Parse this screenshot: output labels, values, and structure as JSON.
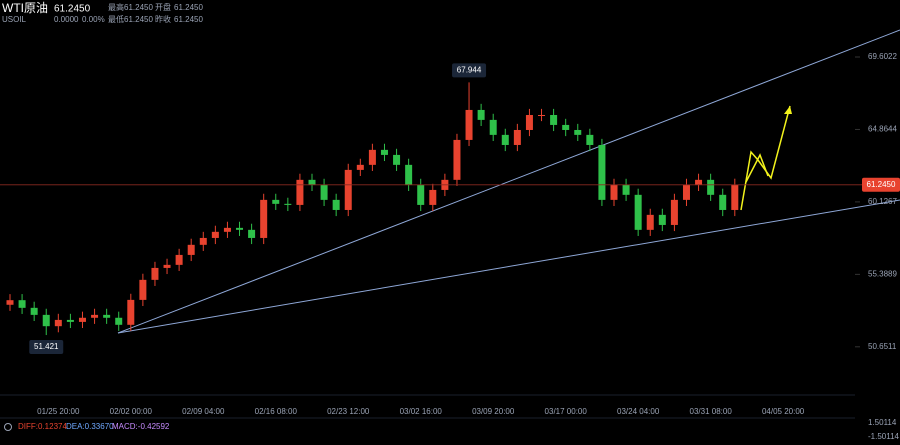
{
  "header": {
    "symbol": "WTI原油",
    "price": "61.2450",
    "code": "USOIL",
    "change": "0.0000",
    "change_pct": "0.00%",
    "high_label": "最高",
    "high": "61.2450",
    "open_label": "开盘",
    "open": "61.2450",
    "low_label": "最低",
    "low": "61.2450",
    "prev_label": "昨收",
    "prev": "61.2450"
  },
  "chart_data": {
    "type": "candlestick",
    "categories": [
      null,
      null,
      null,
      null,
      "01/25 20:00",
      null,
      null,
      null,
      null,
      null,
      "02/02 00:00",
      null,
      null,
      null,
      null,
      null,
      "02/09 04:00",
      null,
      null,
      null,
      null,
      null,
      "02/16 08:00",
      null,
      null,
      null,
      null,
      null,
      "02/23 12:00",
      null,
      null,
      null,
      null,
      null,
      "03/02 16:00",
      null,
      null,
      null,
      null,
      null,
      "03/09 20:00",
      null,
      null,
      null,
      null,
      null,
      "03/17 00:00",
      null,
      null,
      null,
      null,
      null,
      "03/24 04:00",
      null,
      null,
      null,
      null,
      null,
      "03/31 08:00",
      null,
      null,
      null,
      null,
      null,
      "04/05 20:00"
    ],
    "open": [
      53.4,
      53.7,
      53.2,
      52.74,
      52.0,
      52.41,
      52.28,
      52.55,
      52.74,
      52.55,
      52.09,
      53.72,
      55.03,
      55.81,
      56.01,
      56.66,
      57.32,
      57.77,
      58.17,
      58.43,
      58.3,
      57.77,
      60.26,
      60.0,
      59.93,
      61.57,
      61.24,
      60.26,
      59.6,
      62.22,
      62.55,
      63.53,
      63.2,
      62.55,
      61.24,
      59.93,
      60.91,
      61.57,
      64.18,
      66.14,
      65.49,
      64.51,
      63.85,
      64.83,
      65.81,
      65.81,
      65.16,
      64.83,
      64.51,
      63.85,
      60.26,
      61.24,
      60.59,
      58.3,
      59.28,
      58.62,
      60.26,
      61.24,
      61.57,
      60.59,
      59.6,
      null,
      null,
      null,
      null
    ],
    "high": [
      54.1,
      54.1,
      53.6,
      53.14,
      52.81,
      52.81,
      52.95,
      53.14,
      53.14,
      52.95,
      54.12,
      55.43,
      56.21,
      56.41,
      57.06,
      57.72,
      58.17,
      58.57,
      58.83,
      58.83,
      58.7,
      60.66,
      60.66,
      60.4,
      61.97,
      61.97,
      61.64,
      60.66,
      62.62,
      62.95,
      63.93,
      63.93,
      63.6,
      62.95,
      61.64,
      61.31,
      61.97,
      64.58,
      67.944,
      66.54,
      65.89,
      64.91,
      65.23,
      66.21,
      66.21,
      66.21,
      65.56,
      65.23,
      64.91,
      64.25,
      61.64,
      61.64,
      60.99,
      59.68,
      59.68,
      60.66,
      61.64,
      61.97,
      61.97,
      60.99,
      61.645,
      null,
      null,
      null,
      null
    ],
    "low": [
      53.0,
      52.8,
      52.34,
      51.421,
      51.6,
      51.88,
      51.88,
      52.15,
      52.15,
      51.69,
      51.69,
      53.32,
      54.63,
      55.41,
      55.61,
      56.26,
      56.92,
      57.37,
      57.77,
      57.9,
      57.37,
      57.37,
      59.6,
      59.53,
      59.53,
      60.84,
      59.86,
      59.2,
      59.2,
      61.82,
      62.15,
      62.8,
      62.15,
      60.84,
      59.53,
      59.53,
      60.51,
      61.17,
      63.78,
      65.09,
      64.11,
      63.45,
      63.45,
      64.43,
      65.41,
      64.76,
      64.43,
      64.11,
      63.45,
      59.86,
      59.86,
      60.19,
      57.9,
      57.9,
      58.22,
      58.22,
      59.86,
      60.84,
      60.19,
      59.2,
      59.2,
      null,
      null,
      null,
      null
    ],
    "close": [
      53.7,
      53.2,
      52.74,
      52.0,
      52.41,
      52.28,
      52.55,
      52.74,
      52.55,
      52.09,
      53.72,
      55.03,
      55.81,
      56.01,
      56.66,
      57.32,
      57.77,
      58.17,
      58.43,
      58.3,
      57.77,
      60.26,
      60.0,
      59.93,
      61.57,
      61.24,
      60.26,
      59.6,
      62.22,
      62.55,
      63.53,
      63.2,
      62.55,
      61.24,
      59.93,
      60.91,
      61.57,
      64.18,
      66.14,
      65.49,
      64.51,
      63.85,
      64.83,
      65.81,
      65.81,
      65.16,
      64.83,
      64.51,
      63.85,
      60.26,
      61.24,
      60.59,
      58.3,
      59.28,
      58.62,
      60.26,
      61.24,
      61.57,
      60.59,
      59.6,
      61.245,
      null,
      null,
      null,
      null
    ],
    "up_color": "#e8432f",
    "down_color": "#2fc14a",
    "ylim": [
      47.5,
      73.33
    ],
    "yticks": [
      69.6022,
      64.8644,
      60.1267,
      55.3889,
      50.6511
    ],
    "last_price": {
      "value": 61.245,
      "label": "61.2450"
    },
    "annotations": [
      {
        "value": 67.944,
        "index": 38
      },
      {
        "value": 51.421,
        "index": 3
      }
    ],
    "macd": {
      "diff": "DIFF:0.12374",
      "dea": "DEA:0.33670",
      "macd": "MACD:-0.42592",
      "yticks": [
        1.50114,
        -1.50114
      ]
    }
  }
}
